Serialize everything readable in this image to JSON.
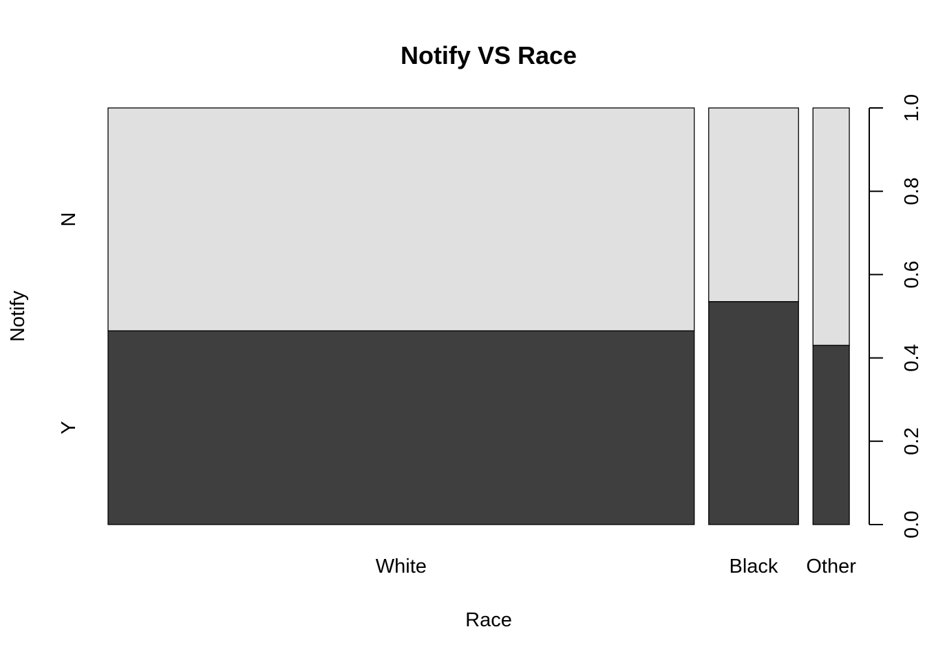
{
  "chart_data": {
    "type": "spineplot",
    "title": "Notify VS Race",
    "xlabel": "Race",
    "ylabel": "Notify",
    "categories": [
      "White",
      "Black",
      "Other"
    ],
    "category_shares": [
      0.7708,
      0.1181,
      0.0478
    ],
    "series": [
      {
        "name": "Y",
        "values": [
          0.465,
          0.535,
          0.43
        ]
      },
      {
        "name": "N",
        "values": [
          0.535,
          0.465,
          0.57
        ]
      }
    ],
    "y_levels": [
      "N",
      "Y"
    ],
    "ylim": [
      0,
      1
    ],
    "right_axis_ticks": [
      "0.0",
      "0.2",
      "0.4",
      "0.6",
      "0.8",
      "1.0"
    ],
    "colors": {
      "Y": "#3f3f3f",
      "N": "#e0e0e0",
      "border": "#000000"
    }
  }
}
